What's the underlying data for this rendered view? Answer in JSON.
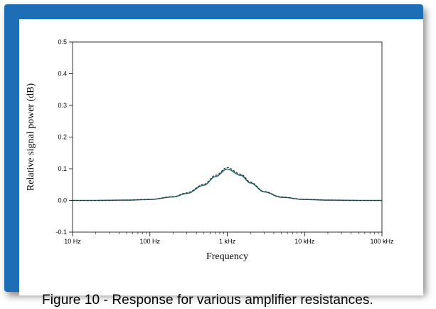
{
  "caption": "Figure 10  - Response for various amplifier resistances.",
  "colors": {
    "frame": "#1c6fb5",
    "series_solid": "#1f6b6b",
    "series_dashed": "#2a2a2a"
  },
  "chart_data": {
    "type": "line",
    "xscale": "log",
    "xlim": [
      10,
      100000
    ],
    "ylim": [
      -0.1,
      0.5
    ],
    "xlabel": "Frequency",
    "ylabel": "Relative signal power (dB)",
    "xticks": [
      {
        "value": 10,
        "label": "10 Hz"
      },
      {
        "value": 100,
        "label": "100 Hz"
      },
      {
        "value": 1000,
        "label": "1 kHz"
      },
      {
        "value": 10000,
        "label": "10 kHz"
      },
      {
        "value": 100000,
        "label": "100 kHz"
      }
    ],
    "yticks": [
      {
        "value": -0.1,
        "label": "-0.1"
      },
      {
        "value": 0.0,
        "label": "0.0"
      },
      {
        "value": 0.1,
        "label": "0.1"
      },
      {
        "value": 0.2,
        "label": "0.2"
      },
      {
        "value": 0.3,
        "label": "0.3"
      },
      {
        "value": 0.4,
        "label": "0.4"
      },
      {
        "value": 0.5,
        "label": "0.5"
      }
    ],
    "grid": false,
    "legend": "none",
    "series": [
      {
        "style": "solid",
        "x": [
          10,
          20,
          50,
          100,
          200,
          300,
          500,
          700,
          1000,
          1500,
          2000,
          3000,
          5000,
          10000,
          20000,
          50000,
          100000
        ],
        "y": [
          0.0,
          0.0,
          0.001,
          0.003,
          0.011,
          0.022,
          0.048,
          0.075,
          0.099,
          0.079,
          0.055,
          0.027,
          0.01,
          0.003,
          0.001,
          0.0,
          0.0
        ]
      },
      {
        "style": "dashed",
        "x": [
          10,
          20,
          50,
          100,
          200,
          300,
          500,
          700,
          1000,
          1500,
          2000,
          3000,
          5000,
          10000,
          20000,
          50000,
          100000
        ],
        "y": [
          0.0,
          0.0,
          0.001,
          0.003,
          0.012,
          0.024,
          0.051,
          0.079,
          0.104,
          0.083,
          0.058,
          0.028,
          0.011,
          0.003,
          0.001,
          0.0,
          0.0
        ]
      }
    ]
  }
}
